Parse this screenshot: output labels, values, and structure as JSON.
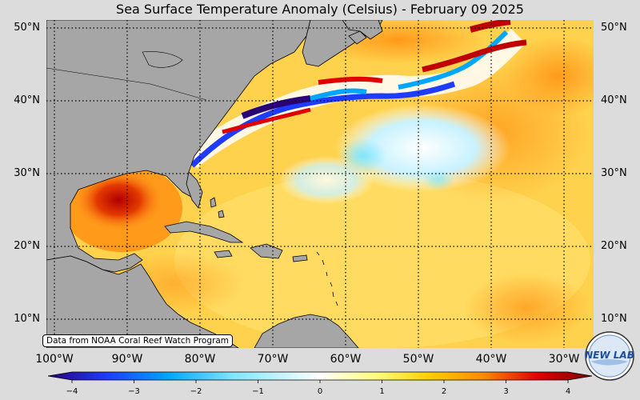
{
  "title": "Sea Surface Temperature Anomaly (Celsius) - February 09 2025",
  "credit": "Data from NOAA Coral Reef Watch Program",
  "logo_text": "NEW LAB",
  "lat_labels": [
    "50°N",
    "40°N",
    "30°N",
    "20°N",
    "10°N"
  ],
  "lon_labels": [
    "100°W",
    "90°W",
    "80°W",
    "70°W",
    "60°W",
    "50°W",
    "40°W",
    "30°W"
  ],
  "colorbar": {
    "min": -4,
    "max": 4,
    "ticks": [
      "−4",
      "−3",
      "−2",
      "−1",
      "0",
      "1",
      "2",
      "3",
      "4"
    ],
    "colors": [
      "#2a0078",
      "#1d3cff",
      "#00a6ff",
      "#7fe6ff",
      "#ffffff",
      "#ffff80",
      "#ffd000",
      "#ff8a00",
      "#e00000",
      "#7a0000"
    ]
  },
  "land_color": "#a6a6a6",
  "grid_style": "dotted"
}
